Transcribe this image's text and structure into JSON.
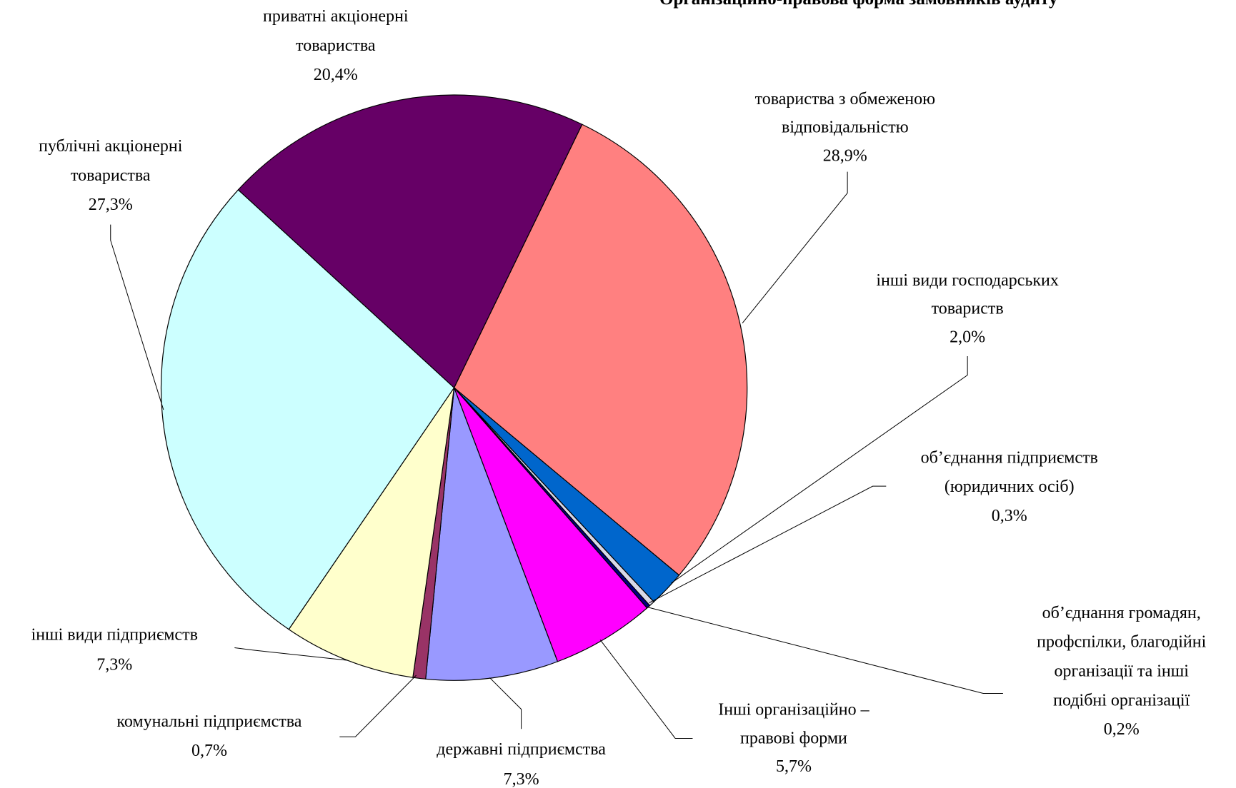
{
  "chart_data": {
    "type": "pie",
    "title": "Організаційно-правова форма замовників аудиту",
    "categories": [
      "товариства з обмеженою\nвідповідальністю",
      "інші види господарських\nтовариств",
      "об’єднання підприємств\n(юридичних осіб)",
      "об’єднання громадян,\nпрофспілки, благодійні\nорганізації та інші\nподібні організації",
      "Інші організаційно –\nправові форми",
      "державні підприємства",
      "комунальні підприємства",
      "інші види підприємств",
      "публічні акціонерні\nтовариства",
      "приватні  акціонерні\nтовариства"
    ],
    "values": [
      28.9,
      2.0,
      0.3,
      0.2,
      5.7,
      7.3,
      0.7,
      7.3,
      27.3,
      20.4
    ],
    "value_labels": [
      "28,9%",
      "2,0%",
      "0,3%",
      "0,2%",
      "5,7%",
      "7,3%",
      "0,7%",
      "7,3%",
      "27,3%",
      "20,4%"
    ],
    "colors": [
      "#FF8080",
      "#0066CC",
      "#D8D8E8",
      "#000080",
      "#FF00FF",
      "#9999FF",
      "#993366",
      "#FFFFCC",
      "#CCFFFF",
      "#660066"
    ]
  }
}
